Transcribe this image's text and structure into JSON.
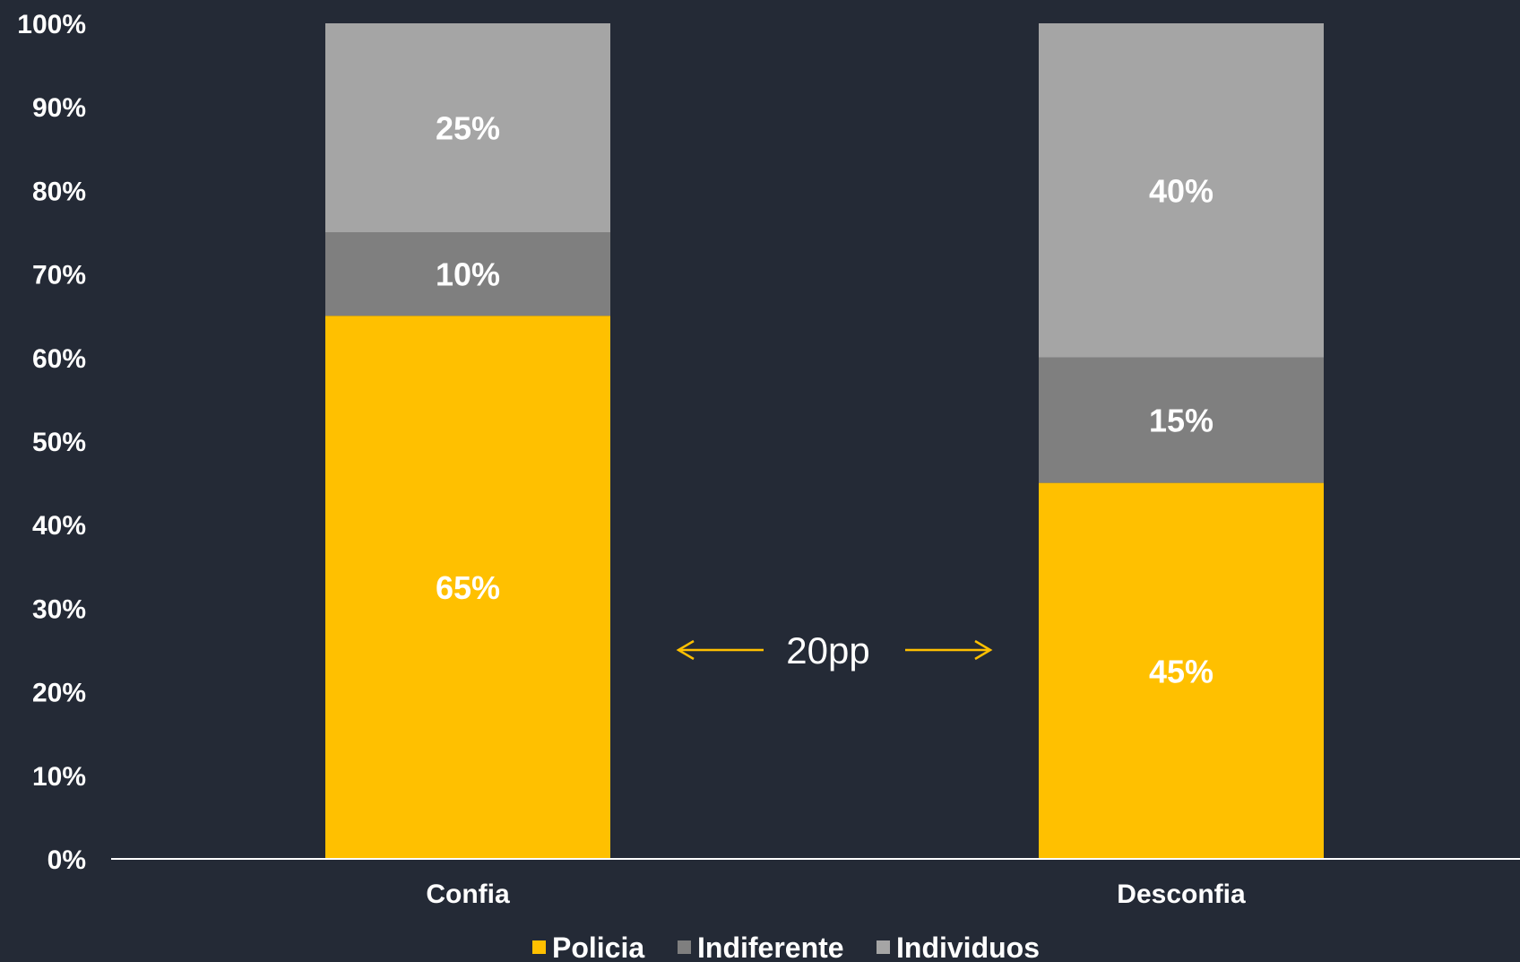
{
  "chart_data": {
    "type": "bar",
    "stacked": true,
    "categories": [
      "Confia",
      "Desconfia"
    ],
    "series": [
      {
        "name": "Policia",
        "values": [
          65,
          45
        ],
        "labels": [
          "65%",
          "45%"
        ],
        "color": "#ffc000"
      },
      {
        "name": "Indiferente",
        "values": [
          10,
          15
        ],
        "labels": [
          "10%",
          "15%"
        ],
        "color": "#7f7f7f"
      },
      {
        "name": "Individuos",
        "values": [
          25,
          40
        ],
        "labels": [
          "25%",
          "40%"
        ],
        "color": "#a5a5a5"
      }
    ],
    "ylim": [
      0,
      100
    ],
    "yticks": [
      "0%",
      "10%",
      "20%",
      "30%",
      "40%",
      "50%",
      "60%",
      "70%",
      "80%",
      "90%",
      "100%"
    ],
    "grid": false,
    "legend": "bottom",
    "annotation": {
      "text": "20pp",
      "color": "#ffc000"
    },
    "colors": {
      "background": "#242a36",
      "axis": "#ffffff",
      "text": "#ffffff"
    }
  }
}
